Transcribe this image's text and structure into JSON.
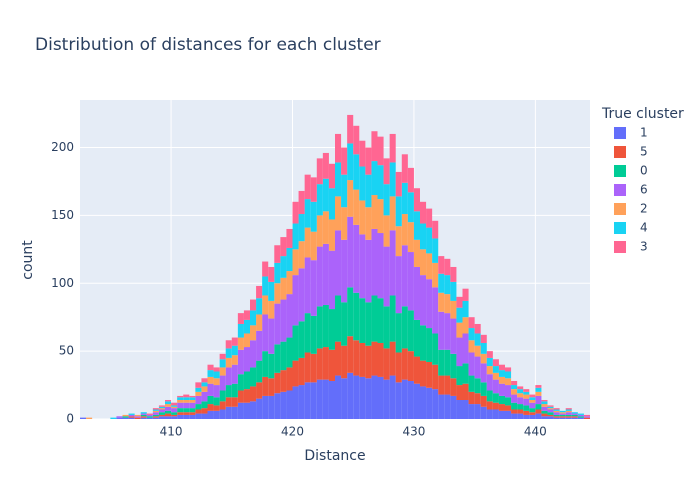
{
  "chart_data": {
    "type": "histogram",
    "title": "Distribution of distances for each cluster",
    "x_label": "Distance",
    "y_label": "count",
    "legend_title": "True cluster",
    "legend_position": "right",
    "grid": true,
    "stacked": true,
    "bins": [
      402.5,
      403,
      403.5,
      404,
      404.5,
      405,
      405.5,
      406,
      406.5,
      407,
      407.5,
      408,
      408.5,
      409,
      409.5,
      410,
      410.5,
      411,
      411.5,
      412,
      412.5,
      413,
      413.5,
      414,
      414.5,
      415,
      415.5,
      416,
      416.5,
      417,
      417.5,
      418,
      418.5,
      419,
      419.5,
      420,
      420.5,
      421,
      421.5,
      422,
      422.5,
      423,
      423.5,
      424,
      424.5,
      425,
      425.5,
      426,
      426.5,
      427,
      427.5,
      428,
      428.5,
      429,
      429.5,
      430,
      430.5,
      431,
      431.5,
      432,
      432.5,
      433,
      433.5,
      434,
      434.5,
      435,
      435.5,
      436,
      436.5,
      437,
      437.5,
      438,
      438.5,
      439,
      439.5,
      440,
      440.5,
      441,
      441.5,
      442,
      442.5,
      443,
      443.5,
      444,
      444.5
    ],
    "xlim": [
      402.5,
      444.5
    ],
    "ylim": [
      0,
      235
    ],
    "xticks": [
      410,
      420,
      430,
      440
    ],
    "yticks": [
      0,
      50,
      100,
      150,
      200
    ],
    "series": [
      {
        "name": "1",
        "color": "#636efa",
        "values": [
          1,
          0,
          0,
          0,
          0,
          0,
          1,
          1,
          1,
          0,
          1,
          1,
          1,
          2,
          2,
          2,
          3,
          3,
          3,
          4,
          4,
          6,
          6,
          7,
          9,
          9,
          12,
          12,
          13,
          15,
          17,
          17,
          19,
          20,
          21,
          24,
          25,
          27,
          27,
          29,
          29,
          28,
          32,
          30,
          34,
          32,
          31,
          30,
          32,
          31,
          29,
          32,
          27,
          29,
          28,
          26,
          24,
          23,
          22,
          18,
          18,
          17,
          14,
          14,
          11,
          11,
          9,
          7,
          7,
          6,
          6,
          4,
          4,
          3,
          3,
          4,
          2,
          2,
          1,
          1,
          1,
          1,
          1,
          0
        ]
      },
      {
        "name": "5",
        "color": "#EF553B",
        "values": [
          0,
          0,
          0,
          0,
          0,
          0,
          0,
          0,
          1,
          1,
          1,
          0,
          1,
          1,
          2,
          1,
          2,
          2,
          2,
          3,
          4,
          5,
          4,
          6,
          7,
          7,
          9,
          10,
          11,
          12,
          14,
          13,
          15,
          16,
          17,
          19,
          20,
          22,
          21,
          23,
          24,
          23,
          25,
          24,
          27,
          26,
          25,
          24,
          25,
          25,
          23,
          25,
          22,
          23,
          22,
          20,
          19,
          19,
          18,
          14,
          14,
          13,
          11,
          12,
          9,
          8,
          8,
          6,
          5,
          5,
          4,
          3,
          3,
          3,
          2,
          3,
          2,
          1,
          1,
          1,
          1,
          1,
          0,
          1
        ]
      },
      {
        "name": "0",
        "color": "#00cc96",
        "values": [
          0,
          0,
          0,
          0,
          0,
          0,
          0,
          1,
          0,
          0,
          1,
          1,
          1,
          2,
          2,
          2,
          3,
          3,
          3,
          4,
          5,
          6,
          6,
          8,
          9,
          10,
          12,
          13,
          14,
          16,
          19,
          18,
          21,
          21,
          22,
          26,
          27,
          29,
          28,
          31,
          31,
          30,
          34,
          32,
          36,
          35,
          33,
          32,
          34,
          33,
          31,
          34,
          29,
          31,
          30,
          27,
          26,
          25,
          23,
          19,
          19,
          18,
          14,
          15,
          12,
          11,
          10,
          8,
          7,
          6,
          6,
          5,
          4,
          4,
          3,
          4,
          2,
          2,
          1,
          1,
          1,
          1,
          1,
          0
        ]
      },
      {
        "name": "6",
        "color": "#ab63fa",
        "values": [
          0,
          0,
          0,
          0,
          0,
          0,
          1,
          0,
          1,
          1,
          1,
          1,
          2,
          2,
          3,
          3,
          4,
          4,
          4,
          6,
          7,
          9,
          9,
          11,
          13,
          14,
          18,
          18,
          20,
          22,
          27,
          26,
          30,
          31,
          32,
          37,
          39,
          41,
          41,
          44,
          45,
          43,
          48,
          46,
          52,
          50,
          47,
          46,
          49,
          48,
          44,
          48,
          42,
          45,
          43,
          39,
          37,
          36,
          34,
          28,
          27,
          26,
          21,
          22,
          17,
          16,
          14,
          12,
          10,
          9,
          9,
          6,
          5,
          5,
          4,
          6,
          3,
          2,
          2,
          1,
          2,
          1,
          1,
          1
        ]
      },
      {
        "name": "2",
        "color": "#FFA15A",
        "values": [
          0,
          1,
          0,
          0,
          0,
          0,
          0,
          1,
          0,
          1,
          0,
          0,
          1,
          1,
          2,
          1,
          2,
          2,
          2,
          3,
          4,
          5,
          5,
          6,
          7,
          7,
          9,
          10,
          11,
          12,
          14,
          13,
          15,
          16,
          17,
          19,
          20,
          22,
          21,
          23,
          24,
          23,
          25,
          24,
          27,
          26,
          25,
          24,
          25,
          25,
          23,
          25,
          22,
          23,
          22,
          20,
          19,
          19,
          18,
          14,
          14,
          13,
          11,
          12,
          9,
          8,
          7,
          6,
          5,
          5,
          5,
          4,
          3,
          3,
          2,
          3,
          2,
          1,
          1,
          1,
          1,
          0,
          0,
          0
        ]
      },
      {
        "name": "4",
        "color": "#19d3f3",
        "values": [
          0,
          0,
          0,
          0,
          0,
          1,
          0,
          0,
          1,
          0,
          1,
          0,
          1,
          1,
          2,
          1,
          2,
          2,
          2,
          3,
          3,
          5,
          5,
          6,
          7,
          7,
          10,
          10,
          11,
          12,
          14,
          14,
          15,
          16,
          17,
          19,
          20,
          21,
          22,
          23,
          24,
          23,
          25,
          24,
          27,
          26,
          25,
          24,
          25,
          25,
          23,
          25,
          22,
          23,
          22,
          21,
          19,
          19,
          18,
          14,
          14,
          14,
          11,
          12,
          9,
          9,
          8,
          6,
          5,
          5,
          5,
          3,
          3,
          2,
          2,
          3,
          2,
          1,
          1,
          1,
          1,
          1,
          1,
          0
        ]
      },
      {
        "name": "3",
        "color": "#FF6692",
        "values": [
          0,
          0,
          0,
          0,
          0,
          0,
          0,
          0,
          0,
          0,
          0,
          1,
          1,
          1,
          1,
          2,
          1,
          2,
          1,
          4,
          3,
          4,
          3,
          4,
          6,
          6,
          8,
          7,
          8,
          9,
          11,
          11,
          13,
          14,
          14,
          16,
          17,
          18,
          18,
          19,
          19,
          18,
          21,
          20,
          21,
          21,
          19,
          20,
          22,
          21,
          19,
          21,
          18,
          21,
          18,
          17,
          16,
          14,
          13,
          13,
          12,
          11,
          8,
          9,
          8,
          7,
          6,
          5,
          5,
          4,
          3,
          3,
          2,
          2,
          2,
          2,
          1,
          1,
          1,
          0,
          1,
          0,
          0,
          1
        ]
      }
    ]
  }
}
